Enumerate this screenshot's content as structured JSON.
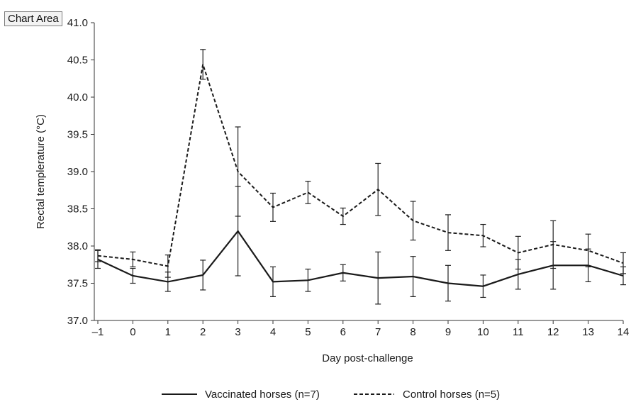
{
  "tooltip": {
    "label": "Chart Area"
  },
  "chart_data": {
    "type": "line",
    "xlabel": "Day post-challenge",
    "ylabel": "Rectal templerature (°C)",
    "xlim": [
      -1,
      14
    ],
    "ylim": [
      37.0,
      41.0
    ],
    "x_ticks": [
      "–1",
      "0",
      "1",
      "2",
      "3",
      "4",
      "5",
      "6",
      "7",
      "8",
      "9",
      "10",
      "11",
      "12",
      "13",
      "14"
    ],
    "y_ticks": [
      "37.0",
      "37.5",
      "38.0",
      "38.5",
      "39.0",
      "39.5",
      "40.0",
      "40.5",
      "41.0"
    ],
    "x": [
      -1,
      0,
      1,
      2,
      3,
      4,
      5,
      6,
      7,
      8,
      9,
      10,
      11,
      12,
      13,
      14
    ],
    "grid": false,
    "legend_position": "bottom",
    "series": [
      {
        "name": "Vaccinated horses (n=7)",
        "style": "solid",
        "color": "#1a1a1a",
        "values": [
          37.82,
          37.6,
          37.52,
          37.61,
          38.2,
          37.52,
          37.54,
          37.64,
          37.57,
          37.59,
          37.5,
          37.46,
          37.62,
          37.74,
          37.74,
          37.6
        ],
        "error": [
          0.12,
          0.1,
          0.13,
          0.2,
          0.6,
          0.2,
          0.15,
          0.11,
          0.35,
          0.27,
          0.24,
          0.15,
          0.2,
          0.32,
          0.22,
          0.12
        ]
      },
      {
        "name": "Control horses (n=5)",
        "style": "dashed",
        "color": "#1a1a1a",
        "values": [
          37.87,
          37.82,
          37.73,
          40.44,
          39.0,
          38.52,
          38.72,
          38.4,
          38.76,
          38.34,
          38.18,
          38.14,
          37.91,
          38.02,
          37.94,
          37.77
        ],
        "error": [
          0.08,
          0.1,
          0.15,
          0.2,
          0.6,
          0.19,
          0.15,
          0.11,
          0.35,
          0.26,
          0.24,
          0.15,
          0.22,
          0.32,
          0.22,
          0.14
        ]
      }
    ]
  }
}
